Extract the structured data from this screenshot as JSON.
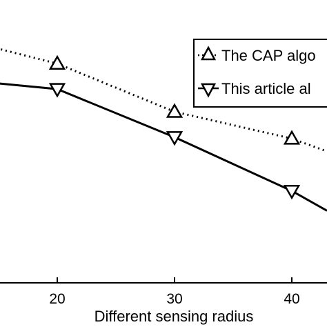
{
  "chart_data": {
    "type": "line",
    "xlabel": "Different sensing radius",
    "x_ticks": [
      20,
      30,
      40
    ],
    "xlim": [
      10,
      43
    ],
    "ylim": [
      0,
      1
    ],
    "grid": false,
    "legend_position": "top-right",
    "series": [
      {
        "name": "The CAP algo",
        "line_style": "dotted",
        "marker": "triangle-up",
        "color": "#000000",
        "x": [
          10,
          20,
          30,
          40,
          43
        ],
        "y": [
          0.88,
          0.775,
          0.605,
          0.51,
          0.465
        ]
      },
      {
        "name": "This article al",
        "line_style": "solid",
        "marker": "triangle-down",
        "color": "#000000",
        "x": [
          10,
          20,
          30,
          40,
          43
        ],
        "y": [
          0.725,
          0.685,
          0.515,
          0.325,
          0.255
        ]
      }
    ]
  }
}
